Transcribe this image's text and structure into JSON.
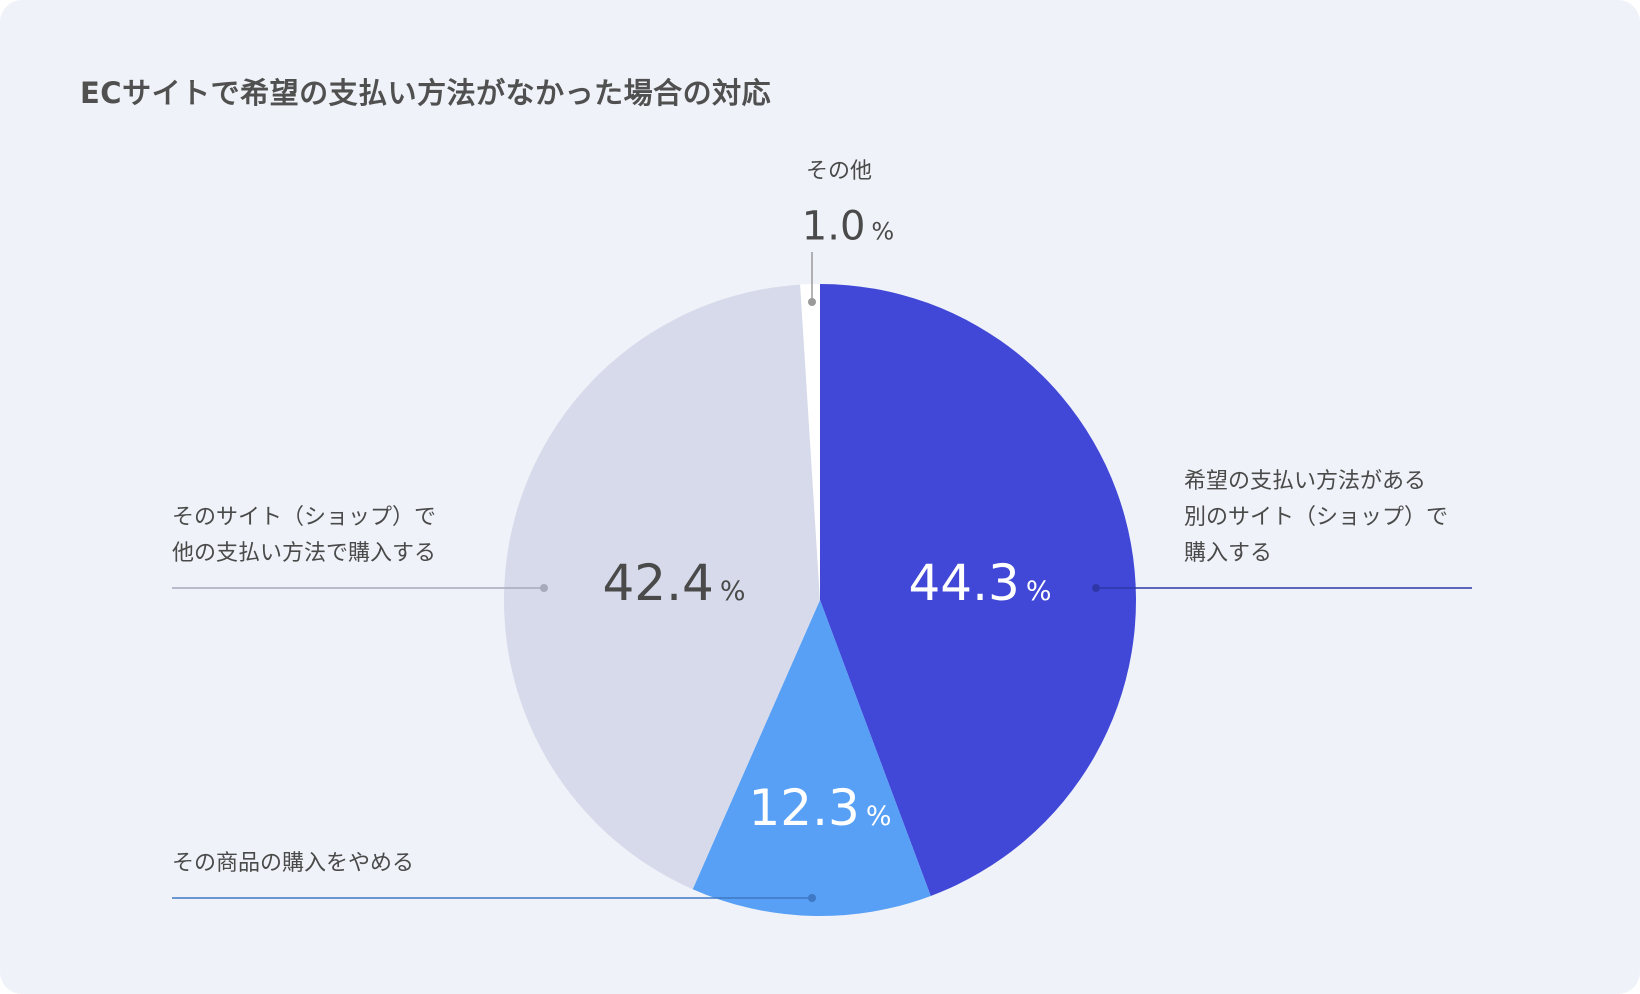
{
  "title": "ECサイトで希望の支払い方法がなかった場合の対応",
  "chart_data": {
    "type": "pie",
    "title": "ECサイトで希望の支払い方法がなかった場合の対応",
    "unit": "%",
    "order": "clockwise from top",
    "slices": [
      {
        "label_lines": [
          "希望の支払い方法がある",
          "別のサイト（ショップ）で",
          "購入する"
        ],
        "value": 44.3,
        "value_text": "44.3",
        "color": "#4148d8",
        "value_color": "#ffffff"
      },
      {
        "label_lines": [
          "その商品の購入をやめる"
        ],
        "value": 12.3,
        "value_text": "12.3",
        "color": "#57a0f6",
        "value_color": "#ffffff"
      },
      {
        "label_lines": [
          "そのサイト（ショップ）で",
          "他の支払い方法で購入する"
        ],
        "value": 42.4,
        "value_text": "42.4",
        "color": "#d6daea",
        "value_color": "#4a4a4a"
      },
      {
        "label_lines": [
          "その他"
        ],
        "value": 1.0,
        "value_text": "1.0",
        "color": "#ffffff",
        "value_color": "#4a4a4a"
      }
    ],
    "leader_colors": [
      "#2f37a8",
      "#3f78c4",
      "#a6aabb",
      "#9a9a9a"
    ]
  }
}
